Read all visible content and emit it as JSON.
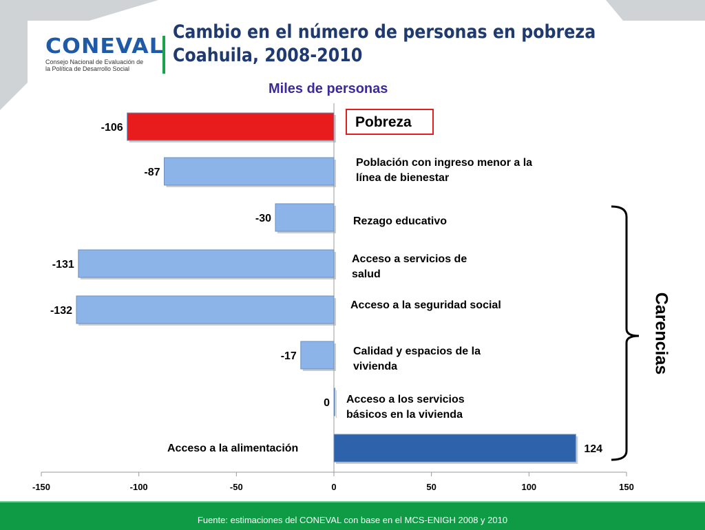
{
  "header": {
    "title_line1": "Cambio en el número de personas en pobreza",
    "title_line2": "Coahuila, 2008-2010",
    "logo_text": "CONEVAL",
    "logo_subtitle": "Consejo Nacional de Evaluación de la Política de Desarrollo Social"
  },
  "group_label": "Carencias",
  "footer": "Fuente: estimaciones del CONEVAL con base en el MCS-ENIGH 2008 y 2010",
  "colors": {
    "pobreza": "#e81c1c",
    "negative": "#8db4e8",
    "positive": "#2e62aa",
    "footer": "#0f9b45"
  },
  "chart_data": {
    "type": "bar",
    "orientation": "horizontal",
    "title": "Miles de personas",
    "categories": [
      "Pobreza",
      "Población con ingreso menor a la línea de bienestar",
      "Rezago educativo",
      "Acceso a servicios de salud",
      "Acceso a la seguridad social",
      "Calidad y espacios de la vivienda",
      "Acceso a los servicios básicos en la vivienda",
      "Acceso a la alimentación"
    ],
    "values": [
      -106,
      -87,
      -30,
      -131,
      -132,
      -17,
      0,
      124
    ],
    "value_labels": [
      "-106",
      "-87",
      "-30",
      "-131",
      "-132",
      "-17",
      "0",
      "124"
    ],
    "xlim": [
      -150,
      150
    ],
    "xticks": [
      "-150",
      "-100",
      "-50",
      "0",
      "50",
      "100",
      "150"
    ]
  }
}
